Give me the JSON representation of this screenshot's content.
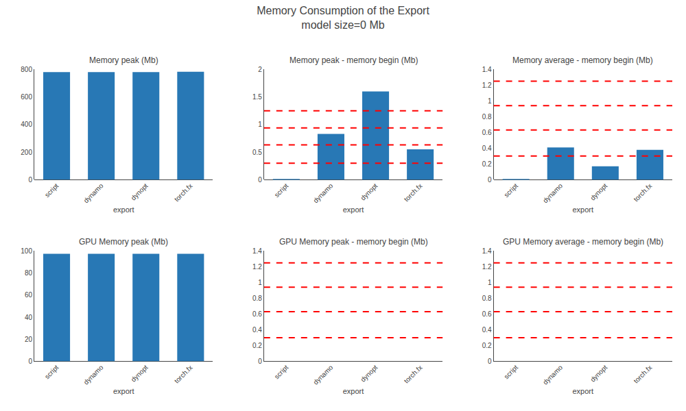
{
  "title": "Memory Consumption of the Export\nmodel size=0 Mb",
  "chart_data": [
    {
      "type": "bar",
      "title": "Memory peak (Mb)",
      "categories": [
        "script",
        "dynamo",
        "dynopt",
        "torch.fx"
      ],
      "values": [
        780.0,
        780.0,
        780.0,
        783.0
      ],
      "color": "#2878b5",
      "xlabel": "export",
      "ylim": [
        0,
        800
      ],
      "yticks": [
        0,
        200,
        400,
        600,
        800
      ],
      "grid": false
    },
    {
      "type": "bar",
      "title": "Memory peak - memory begin (Mb)",
      "categories": [
        "script",
        "dynamo",
        "dynopt",
        "torch.fx"
      ],
      "values": [
        0.01,
        0.83,
        1.6,
        0.55
      ],
      "color": "#2878b5",
      "xlabel": "export",
      "ylim": [
        0,
        2
      ],
      "yticks": [
        0,
        0.5,
        1,
        1.5,
        2
      ],
      "grid": false,
      "hlines": {
        "values": [
          0.3,
          0.63,
          0.94,
          1.25
        ],
        "color": "red",
        "line_style": "dash"
      }
    },
    {
      "type": "bar",
      "title": "Memory average - memory begin (Mb)",
      "categories": [
        "script",
        "dynamo",
        "dynopt",
        "torch.fx"
      ],
      "values": [
        0.01,
        0.41,
        0.17,
        0.38
      ],
      "color": "#2878b5",
      "xlabel": "export",
      "ylim": [
        0,
        1.4
      ],
      "yticks": [
        0,
        0.2,
        0.4,
        0.6,
        0.8,
        1,
        1.2,
        1.4
      ],
      "grid": false,
      "hlines": {
        "values": [
          0.3,
          0.63,
          0.94,
          1.25
        ],
        "color": "red",
        "line_style": "dash"
      }
    },
    {
      "type": "bar",
      "title": "GPU Memory peak (Mb)",
      "categories": [
        "script",
        "dynamo",
        "dynopt",
        "torch.fx"
      ],
      "values": [
        97.5,
        97.5,
        97.5,
        97.5
      ],
      "color": "#2878b5",
      "xlabel": "export",
      "ylim": [
        0,
        100
      ],
      "yticks": [
        0,
        20,
        40,
        60,
        80,
        100
      ],
      "grid": false
    },
    {
      "type": "bar",
      "title": "GPU Memory peak - memory begin (Mb)",
      "categories": [
        "script",
        "dynamo",
        "dynopt",
        "torch.fx"
      ],
      "values": [
        0.0,
        0.0,
        0.0,
        0.0
      ],
      "color": "#2878b5",
      "xlabel": "export",
      "ylim": [
        0,
        1.4
      ],
      "yticks": [
        0,
        0.2,
        0.4,
        0.6,
        0.8,
        1,
        1.2,
        1.4
      ],
      "grid": false,
      "hlines": {
        "values": [
          0.3,
          0.63,
          0.94,
          1.25
        ],
        "color": "red",
        "line_style": "dash"
      }
    },
    {
      "type": "bar",
      "title": "GPU Memory average - memory begin (Mb)",
      "categories": [
        "script",
        "dynamo",
        "dynopt",
        "torch.fx"
      ],
      "values": [
        0.0,
        0.0,
        0.0,
        0.0
      ],
      "color": "#2878b5",
      "xlabel": "export",
      "ylim": [
        0,
        1.4
      ],
      "yticks": [
        0,
        0.2,
        0.4,
        0.6,
        0.8,
        1,
        1.2,
        1.4
      ],
      "grid": false,
      "hlines": {
        "values": [
          0.3,
          0.63,
          0.94,
          1.25
        ],
        "color": "red",
        "line_style": "dash"
      }
    }
  ]
}
